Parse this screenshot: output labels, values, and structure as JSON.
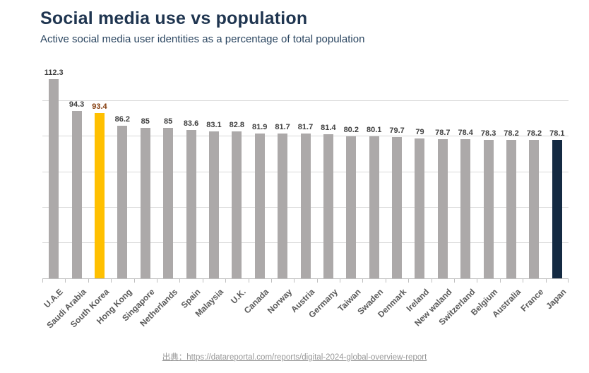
{
  "header": {
    "title": "Social media use vs population",
    "subtitle": "Active social media user identities as a percentage of total population"
  },
  "chart_data": {
    "type": "bar",
    "title": "Social media use vs population",
    "subtitle": "Active social media user identities as a percentage of total population",
    "categories": [
      "U.A.E",
      "Saudi Arabia",
      "South Korea",
      "Hong Kong",
      "Singapore",
      "Netherlands",
      "Spain",
      "Malaysia",
      "U.K.",
      "Canada",
      "Norway",
      "Austria",
      "Germany",
      "Taiwan",
      "Swaden",
      "Denmark",
      "Ireland",
      "New waland",
      "Switzerland",
      "Belgium",
      "Australia",
      "France",
      "Japan"
    ],
    "values": [
      112.3,
      94.3,
      93.4,
      86.2,
      85,
      85,
      83.6,
      83.1,
      82.8,
      81.9,
      81.7,
      81.7,
      81.4,
      80.2,
      80.1,
      79.7,
      79,
      78.7,
      78.4,
      78.3,
      78.2,
      78.2,
      78.1
    ],
    "xlabel": "",
    "ylabel": "",
    "ylim": [
      0,
      120
    ],
    "gridline_values": [
      20,
      40,
      60,
      80,
      100
    ],
    "grid": "horizontal",
    "legend": "none",
    "data_labels": "above bars",
    "bar_color_default": "#ACA9A9",
    "value_label_color_default": "#404040",
    "highlights": [
      {
        "category": "South Korea",
        "bar_color": "#FFC000",
        "label_color": "#843C0C"
      },
      {
        "category": "Japan",
        "bar_color": "#142A42",
        "label_color": "#404040"
      }
    ]
  },
  "footer": {
    "source_text": "出典：https://datareportal.com/reports/digital-2024-global-overview-report"
  }
}
